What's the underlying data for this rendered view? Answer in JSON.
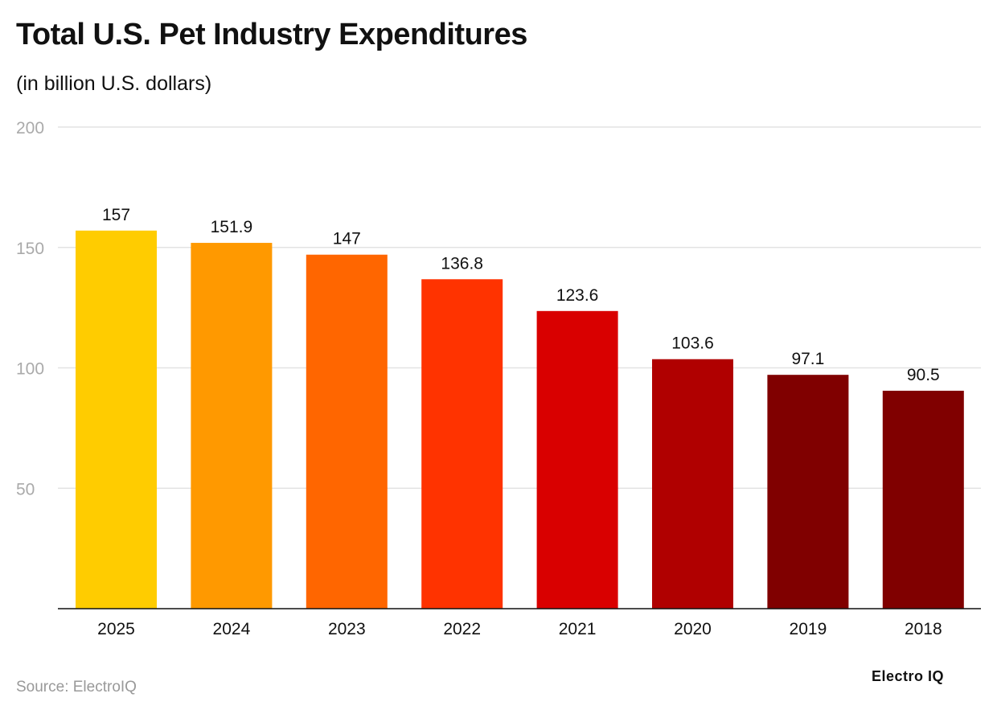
{
  "chart_data": {
    "type": "bar",
    "title": "Total U.S. Pet Industry Expenditures",
    "subtitle": "(in billion U.S. dollars)",
    "categories": [
      "2025",
      "2024",
      "2023",
      "2022",
      "2021",
      "2020",
      "2019",
      "2018"
    ],
    "values": [
      157,
      151.9,
      147,
      136.8,
      123.6,
      103.6,
      97.1,
      90.5
    ],
    "value_labels": [
      "157",
      "151.9",
      "147",
      "136.8",
      "123.6",
      "103.6",
      "97.1",
      "90.5"
    ],
    "colors": [
      "#FFCC00",
      "#FF9900",
      "#FF6600",
      "#FF3300",
      "#D90000",
      "#B00000",
      "#800000",
      "#800000"
    ],
    "ylim": [
      0,
      200
    ],
    "yticks": [
      50,
      100,
      150,
      200
    ],
    "grid": true,
    "xlabel": "",
    "ylabel": ""
  },
  "source": "Source: ElectroIQ",
  "logo": "Electro IQ"
}
